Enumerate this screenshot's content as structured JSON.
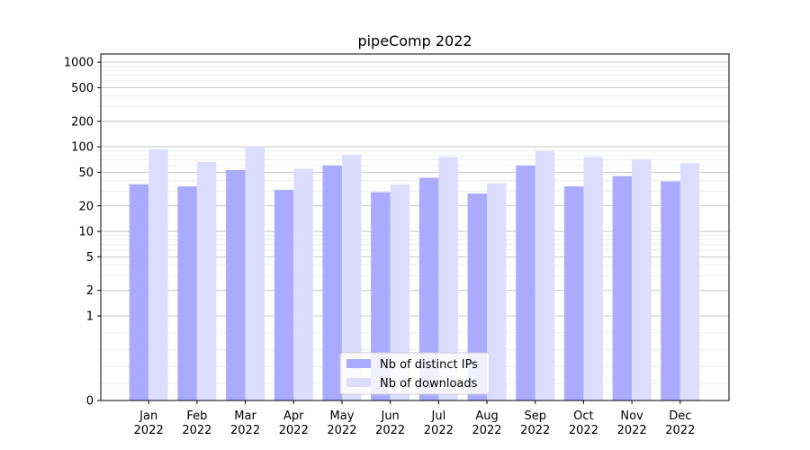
{
  "chart_data": {
    "type": "bar",
    "title": "pipeComp 2022",
    "xlabel": "",
    "ylabel": "",
    "y_scale": "symlog",
    "y_ticks": [
      0,
      1,
      2,
      5,
      10,
      20,
      50,
      100,
      200,
      500,
      1000
    ],
    "y_tick_labels": [
      "0",
      "1",
      "2",
      "5",
      "10",
      "20",
      "50",
      "100",
      "200",
      "500",
      "1000"
    ],
    "ylim": [
      0,
      1250
    ],
    "grid": true,
    "legend_position": "bottom-center",
    "categories": [
      "Jan\n2022",
      "Feb\n2022",
      "Mar\n2022",
      "Apr\n2022",
      "May\n2022",
      "Jun\n2022",
      "Jul\n2022",
      "Aug\n2022",
      "Sep\n2022",
      "Oct\n2022",
      "Nov\n2022",
      "Dec\n2022"
    ],
    "series": [
      {
        "name": "Nb of distinct IPs",
        "color": "#aaaaff",
        "values": [
          36,
          34,
          53,
          31,
          60,
          29,
          43,
          28,
          60,
          34,
          45,
          39
        ]
      },
      {
        "name": "Nb of downloads",
        "color": "#ddddff",
        "values": [
          94,
          66,
          102,
          55,
          80,
          36,
          76,
          37,
          89,
          76,
          71,
          64
        ]
      }
    ]
  }
}
